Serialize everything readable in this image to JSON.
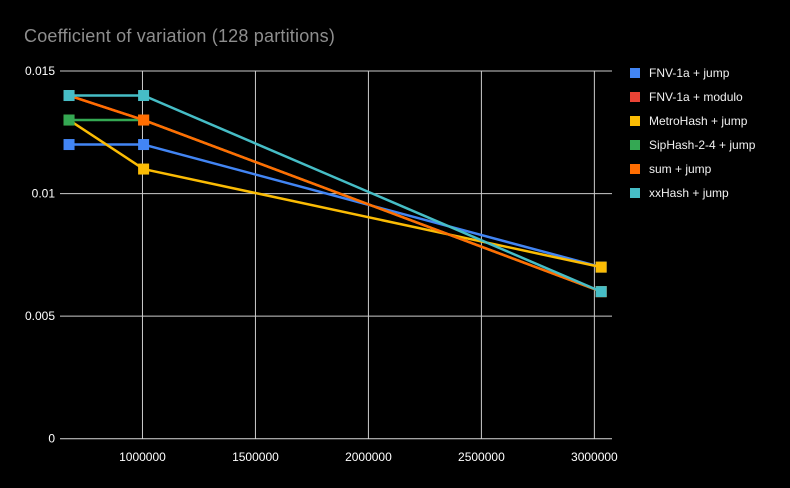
{
  "chart_data": {
    "type": "line",
    "title": "Coefficient of variation (128 partitions)",
    "xlabel": "",
    "ylabel": "",
    "x": [
      675000,
      1005000,
      3030000
    ],
    "series": [
      {
        "name": "FNV-1a + jump",
        "color": "#4285F4",
        "values": [
          0.012,
          0.012,
          0.007
        ]
      },
      {
        "name": "FNV-1a + modulo",
        "color": "#EA4335",
        "values": [
          0.014,
          0.013,
          0.006
        ]
      },
      {
        "name": "MetroHash + jump",
        "color": "#FBBC04",
        "values": [
          0.013,
          0.011,
          0.007
        ]
      },
      {
        "name": "SipHash-2-4 + jump",
        "color": "#34A853",
        "values": [
          0.013,
          0.013,
          0.006
        ]
      },
      {
        "name": "sum + jump",
        "color": "#FF6D01",
        "values": [
          0.014,
          0.013,
          0.006
        ]
      },
      {
        "name": "xxHash + jump",
        "color": "#46BDC6",
        "values": [
          0.014,
          0.014,
          0.006
        ]
      }
    ],
    "xlim": [
      635000,
      3078000
    ],
    "ylim": [
      0,
      0.015
    ],
    "x_ticks": [
      1000000,
      1500000,
      2000000,
      2500000,
      3000000
    ],
    "x_tick_labels": [
      "1000000",
      "1500000",
      "2000000",
      "2500000",
      "3000000"
    ],
    "y_ticks": [
      0,
      0.005,
      0.01,
      0.015
    ],
    "y_tick_labels": [
      "0",
      "0.005",
      "0.01",
      "0.015"
    ],
    "grid": "on",
    "legend_position": "right",
    "marker": "square",
    "note_overlaps": "FNV-1a + modulo is fully hidden beneath sum + jump; SipHash-2-4 + jump hidden at x2/x3; blue hidden at x3 under MetroHash marker"
  },
  "colors": {
    "background": "#000000",
    "title_text": "#8e8e8e",
    "axis_text": "#ffffff",
    "gridline": "#cccccc",
    "baseline": "#d9d9d9"
  }
}
